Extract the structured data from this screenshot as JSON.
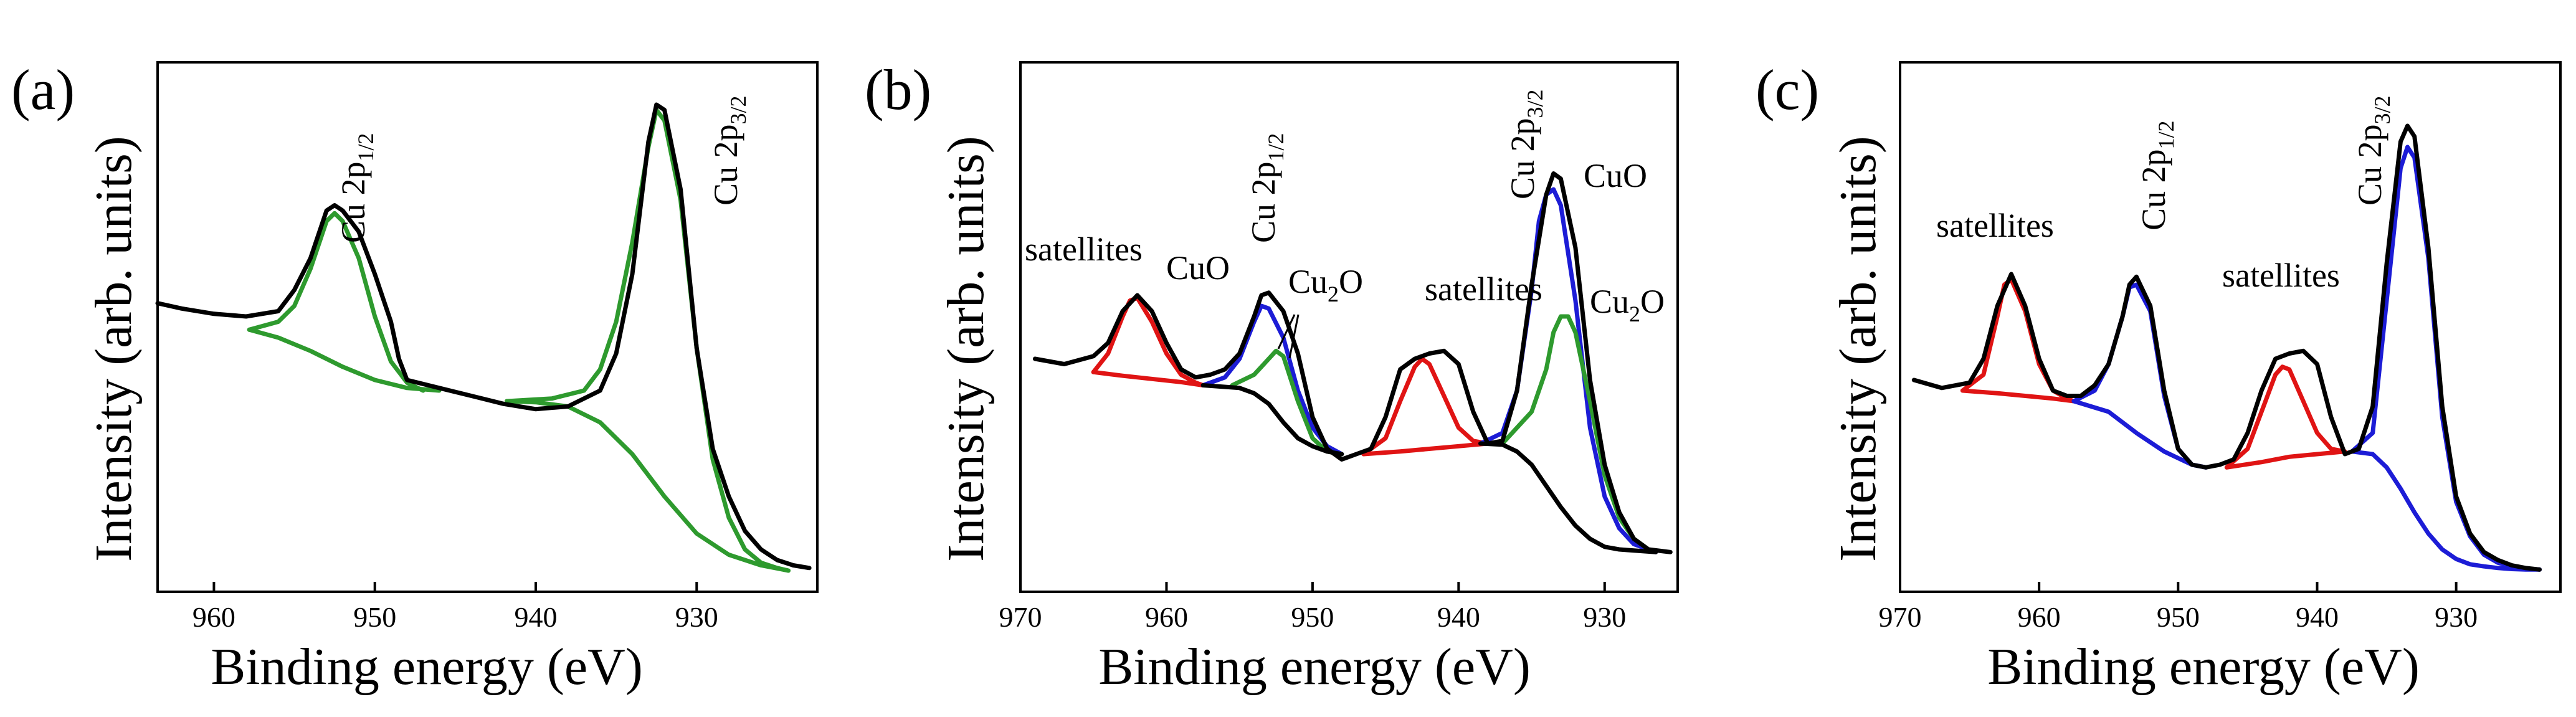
{
  "colors": {
    "measured": "#000000",
    "green": "#2e9a2e",
    "blue": "#1c1cd6",
    "red": "#e01414"
  },
  "chart_data": [
    {
      "type": "line",
      "panel_label": "(a)",
      "xlabel": "Binding energy (eV)",
      "ylabel": "Intensity (arb. units)",
      "xlim": [
        963.5,
        922.5
      ],
      "ylim": [
        0,
        100
      ],
      "xticks": [
        960,
        950,
        940,
        930
      ],
      "xtick_labels": [
        "960",
        "950",
        "940",
        "930"
      ],
      "series": [
        {
          "name": "measured",
          "color": "#000000",
          "x": [
            963.5,
            962,
            960,
            958,
            956,
            955,
            954,
            953,
            952.5,
            952,
            951,
            950,
            949,
            948.5,
            948,
            946,
            944,
            942,
            940,
            938,
            936,
            935,
            934,
            933,
            932.5,
            932,
            931,
            930,
            929,
            928,
            927,
            926,
            925,
            924,
            923
          ],
          "y": [
            54.5,
            53.5,
            52.5,
            52,
            53,
            57,
            63,
            72,
            73,
            72,
            68,
            60,
            51,
            44,
            40,
            38.5,
            37,
            35.5,
            34.5,
            35,
            38,
            45,
            60,
            85,
            92,
            91,
            76,
            46,
            27,
            18,
            11.5,
            8,
            6,
            5,
            4.5
          ]
        },
        {
          "name": "Cu 2p1/2 fit",
          "color": "#2e9a2e",
          "x": [
            957.8,
            956,
            955,
            954,
            953,
            952.5,
            952,
            951,
            950,
            949,
            948,
            947
          ],
          "y": [
            49.5,
            51,
            54,
            61,
            70,
            71.5,
            70,
            63,
            52,
            43.5,
            39.5,
            38
          ]
        },
        {
          "name": "Cu 2p1/2 background",
          "color": "#2e9a2e",
          "x": [
            957.8,
            956,
            954,
            952,
            950,
            948,
            946
          ],
          "y": [
            49.5,
            48,
            45.5,
            42.5,
            40,
            38.5,
            38
          ]
        },
        {
          "name": "Cu 2p3/2 fit",
          "color": "#2e9a2e",
          "x": [
            941.8,
            939,
            937,
            936,
            935,
            934,
            933,
            932.5,
            932,
            931,
            930,
            929,
            928,
            927,
            926,
            925,
            924.3
          ],
          "y": [
            36,
            36.5,
            38,
            42,
            51,
            66,
            84,
            91,
            89,
            74,
            46,
            25,
            14,
            8,
            5.5,
            4.5,
            4
          ]
        },
        {
          "name": "Cu 2p3/2 background",
          "color": "#2e9a2e",
          "x": [
            941.8,
            940,
            938,
            936,
            934,
            932,
            930,
            928,
            926,
            924.3
          ],
          "y": [
            36,
            35.8,
            35,
            32,
            26,
            18,
            11,
            7,
            5,
            4
          ]
        }
      ],
      "annotations": [
        {
          "main": "Cu 2p",
          "sub": "1/2"
        },
        {
          "main": "Cu 2p",
          "sub": "3/2"
        }
      ]
    },
    {
      "type": "line",
      "panel_label": "(b)",
      "xlabel": "Binding energy (eV)",
      "ylabel": "Intensity (arb. units)",
      "xlim": [
        970,
        925
      ],
      "ylim": [
        0,
        100
      ],
      "xticks": [
        970,
        960,
        950,
        940,
        930
      ],
      "xtick_labels": [
        "970",
        "960",
        "950",
        "940",
        "930"
      ],
      "series": [
        {
          "name": "measured",
          "color": "#000000",
          "x": [
            969,
            967,
            965,
            964,
            963,
            962,
            961,
            960,
            959,
            958,
            957,
            956,
            955,
            954,
            953.5,
            953,
            952,
            951,
            950,
            949,
            948,
            947,
            946,
            945,
            944,
            943,
            942,
            941,
            940,
            939,
            938,
            937,
            936,
            935,
            934,
            933.5,
            933,
            932,
            931,
            930,
            929,
            928,
            927,
            925.5
          ],
          "y": [
            44,
            43,
            44.5,
            47,
            53,
            56,
            53,
            47,
            42,
            40.5,
            41,
            42,
            45,
            52,
            56,
            56.5,
            53,
            45,
            33,
            27,
            25,
            26,
            27,
            33,
            42,
            44,
            45,
            45.5,
            43,
            34,
            28,
            28.5,
            38,
            58,
            75,
            79,
            78,
            65,
            40,
            24,
            15,
            10,
            8,
            7.5
          ]
        },
        {
          "name": "satellites (1) fit",
          "color": "#e01414",
          "x": [
            965,
            964,
            963,
            962.5,
            962,
            961,
            960,
            959,
            958,
            957.5
          ],
          "y": [
            41.5,
            45,
            52,
            55,
            55.5,
            51,
            45,
            41,
            39.5,
            39
          ]
        },
        {
          "name": "satellites (1) background",
          "color": "#e01414",
          "x": [
            965,
            963,
            961,
            959,
            957.5
          ],
          "y": [
            41.5,
            40.8,
            40.2,
            39.6,
            39
          ]
        },
        {
          "name": "Cu 2p1/2 CuO fit",
          "color": "#1c1cd6",
          "x": [
            957.5,
            956,
            955,
            954,
            953.5,
            953,
            952,
            951,
            950,
            949,
            948
          ],
          "y": [
            39,
            40.5,
            44,
            51,
            54,
            53.5,
            48,
            38,
            31,
            27.5,
            26
          ]
        },
        {
          "name": "Cu 2p1/2 Cu2O fit",
          "color": "#2e9a2e",
          "x": [
            955.5,
            954,
            953,
            952.5,
            952,
            951,
            950,
            949,
            948
          ],
          "y": [
            39,
            41,
            44,
            45.5,
            44.5,
            36,
            29,
            26.5,
            26
          ]
        },
        {
          "name": "Cu 2p1/2 background",
          "color": "#000000",
          "x": [
            957.5,
            955,
            954,
            953,
            952,
            951,
            950,
            949,
            948
          ],
          "y": [
            39,
            38.5,
            37.5,
            35.5,
            32,
            29,
            27.5,
            26.5,
            26
          ]
        },
        {
          "name": "satellites (2) fit",
          "color": "#e01414",
          "x": [
            946.5,
            945,
            944,
            943,
            942.5,
            942,
            941,
            940,
            939,
            938
          ],
          "y": [
            26,
            29,
            36,
            42.5,
            44,
            43,
            37,
            31,
            28.5,
            28
          ]
        },
        {
          "name": "satellites (2) background",
          "color": "#e01414",
          "x": [
            946.5,
            944,
            942,
            940,
            938
          ],
          "y": [
            26,
            26.5,
            27,
            27.5,
            28
          ]
        },
        {
          "name": "Cu 2p3/2 CuO fit",
          "color": "#1c1cd6",
          "x": [
            938.5,
            937,
            936,
            935,
            934.5,
            934,
            933.5,
            933,
            932,
            931,
            930,
            929,
            928,
            926.5
          ],
          "y": [
            28,
            30,
            38,
            57,
            70,
            75,
            76,
            73,
            55,
            31,
            18,
            12,
            9,
            7.5
          ]
        },
        {
          "name": "Cu 2p3/2 Cu2O fit",
          "color": "#2e9a2e",
          "x": [
            937,
            935,
            934,
            933.5,
            933,
            932.5,
            932,
            931,
            930,
            929,
            928,
            927
          ],
          "y": [
            28,
            34,
            42,
            49,
            52,
            52,
            49,
            36,
            22,
            14,
            10,
            8
          ]
        },
        {
          "name": "Cu 2p3/2 background",
          "color": "#000000",
          "x": [
            938.5,
            937,
            936,
            935,
            934,
            933,
            932,
            931,
            930,
            929,
            928,
            926.5
          ],
          "y": [
            28,
            27.8,
            26.5,
            24,
            20,
            16,
            12.5,
            10,
            8.5,
            8,
            7.8,
            7.5
          ]
        }
      ],
      "annotations": [
        {
          "main": "satellites",
          "sub": ""
        },
        {
          "main": "CuO",
          "sub": ""
        },
        {
          "main": "Cu 2p",
          "sub": "1/2"
        },
        {
          "main": "Cu",
          "sub": "2",
          "tail": "O"
        },
        {
          "main": "satellites",
          "sub": ""
        },
        {
          "main": "Cu 2p",
          "sub": "3/2"
        },
        {
          "main": "CuO",
          "sub": ""
        },
        {
          "main": "Cu",
          "sub": "2",
          "tail": "O"
        }
      ]
    },
    {
      "type": "line",
      "panel_label": "(c)",
      "xlabel": "Binding energy (eV)",
      "ylabel": "Intensity (arb. units)",
      "xlim": [
        970,
        922.5
      ],
      "ylim": [
        0,
        100
      ],
      "xticks": [
        970,
        960,
        950,
        940,
        930
      ],
      "xtick_labels": [
        "970",
        "960",
        "950",
        "940",
        "930"
      ],
      "series": [
        {
          "name": "measured",
          "color": "#000000",
          "x": [
            969,
            967,
            965,
            964,
            963,
            962,
            961,
            960,
            959,
            958,
            957,
            956,
            955,
            954,
            953.5,
            953,
            952,
            951,
            950,
            949,
            948,
            947,
            946,
            945,
            944,
            943,
            942,
            941,
            940,
            939,
            938,
            937,
            936,
            935,
            934,
            933.5,
            933,
            932,
            931,
            930,
            929,
            928,
            927,
            926,
            925,
            924
          ],
          "y": [
            40,
            38.5,
            39.5,
            44,
            54,
            60,
            54,
            44,
            38,
            37,
            37,
            39,
            43,
            52,
            58,
            59.5,
            54,
            38,
            27,
            24,
            23.5,
            24,
            25,
            30,
            38,
            44,
            45,
            45.5,
            43,
            33,
            26,
            27,
            35,
            62,
            85,
            88,
            86,
            65,
            35,
            18,
            11,
            7.5,
            6,
            5,
            4.5,
            4.2
          ]
        },
        {
          "name": "satellites (1) fit",
          "color": "#e01414",
          "x": [
            965.5,
            964,
            963,
            962.5,
            962,
            961,
            960,
            959,
            958,
            957.5
          ],
          "y": [
            38,
            41,
            52,
            58,
            59,
            53,
            43,
            38,
            36.5,
            36
          ]
        },
        {
          "name": "satellites (1) background",
          "color": "#e01414",
          "x": [
            965.5,
            963,
            961,
            959,
            957.5
          ],
          "y": [
            38,
            37.5,
            37,
            36.5,
            36
          ]
        },
        {
          "name": "Cu 2p1/2 fit",
          "color": "#1c1cd6",
          "x": [
            957.5,
            956,
            955,
            954,
            953.5,
            953,
            952,
            951,
            950,
            949,
            948
          ],
          "y": [
            36,
            38,
            43,
            52,
            57.5,
            58,
            53,
            37,
            27,
            24,
            23.5
          ]
        },
        {
          "name": "Cu 2p1/2 background",
          "color": "#1c1cd6",
          "x": [
            957.5,
            955,
            953,
            951,
            949,
            948
          ],
          "y": [
            36,
            34,
            30,
            26.5,
            24,
            23.5
          ]
        },
        {
          "name": "satellites (2) fit",
          "color": "#e01414",
          "x": [
            946.5,
            945,
            944,
            943,
            942.5,
            942,
            941,
            940,
            939,
            938
          ],
          "y": [
            23.5,
            27,
            34,
            41,
            42.5,
            42,
            36,
            30,
            27,
            26.5
          ]
        },
        {
          "name": "satellites (2) background",
          "color": "#e01414",
          "x": [
            946.5,
            944,
            942,
            940,
            938
          ],
          "y": [
            23.5,
            24.5,
            25.5,
            26,
            26.5
          ]
        },
        {
          "name": "Cu 2p3/2 fit",
          "color": "#1c1cd6",
          "x": [
            937.5,
            936,
            935,
            934,
            933.5,
            933,
            932,
            931,
            930,
            929,
            928,
            927,
            926,
            925,
            924
          ],
          "y": [
            26.5,
            30,
            55,
            80,
            84,
            82,
            63,
            33,
            17,
            10.5,
            7,
            5.5,
            4.8,
            4.4,
            4.2
          ]
        },
        {
          "name": "Cu 2p3/2 background",
          "color": "#1c1cd6",
          "x": [
            937.5,
            936,
            935,
            934,
            933,
            932,
            931,
            930,
            929,
            928,
            927,
            926,
            925,
            924
          ],
          "y": [
            26.5,
            26,
            23.5,
            19.5,
            15,
            11,
            8,
            6.2,
            5.2,
            4.8,
            4.5,
            4.3,
            4.2,
            4.2
          ]
        }
      ],
      "annotations": [
        {
          "main": "satellites",
          "sub": ""
        },
        {
          "main": "Cu 2p",
          "sub": "1/2"
        },
        {
          "main": "satellites",
          "sub": ""
        },
        {
          "main": "Cu 2p",
          "sub": "3/2"
        }
      ]
    }
  ]
}
